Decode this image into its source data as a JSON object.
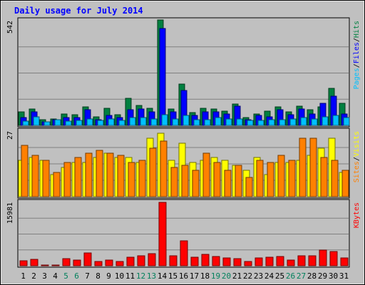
{
  "chart_data": {
    "type": "bar",
    "title": "Daily usage for July 2014",
    "days": [
      "1",
      "2",
      "3",
      "4",
      "5",
      "6",
      "7",
      "8",
      "9",
      "10",
      "11",
      "12",
      "13",
      "14",
      "15",
      "16",
      "17",
      "18",
      "19",
      "20",
      "21",
      "22",
      "23",
      "24",
      "25",
      "26",
      "27",
      "28",
      "29",
      "30",
      "31"
    ],
    "weekend_days": [
      5,
      6,
      12,
      13,
      19,
      20,
      26,
      27
    ],
    "panels": [
      {
        "id": "hits",
        "max_label": "542",
        "ymax": 542,
        "grid": true,
        "legend": [
          {
            "name": "Pages",
            "color": "#00C0FF"
          },
          {
            "name": "/",
            "color": "#000000"
          },
          {
            "name": "Files",
            "color": "#0000FF"
          },
          {
            "name": "/",
            "color": "#000000"
          },
          {
            "name": "Hits",
            "color": "#008040"
          }
        ],
        "series": [
          {
            "name": "Hits",
            "color": "#008040",
            "values": [
              70,
              85,
              30,
              35,
              60,
              55,
              95,
              45,
              90,
              55,
              140,
              105,
              90,
              545,
              85,
              215,
              65,
              90,
              85,
              75,
              110,
              40,
              60,
              75,
              95,
              70,
              100,
              80,
              95,
              190,
              115
            ]
          },
          {
            "name": "Files",
            "color": "#0000FF",
            "values": [
              40,
              70,
              20,
              30,
              40,
              40,
              80,
              30,
              50,
              40,
              80,
              85,
              70,
              500,
              70,
              180,
              50,
              70,
              70,
              60,
              100,
              30,
              50,
              45,
              80,
              55,
              85,
              60,
              115,
              150,
              60
            ]
          },
          {
            "name": "Pages",
            "color": "#00C0FF",
            "values": [
              22,
              45,
              18,
              30,
              22,
              25,
              35,
              25,
              35,
              25,
              40,
              40,
              35,
              55,
              35,
              50,
              28,
              30,
              40,
              35,
              35,
              25,
              25,
              28,
              30,
              35,
              40,
              35,
              45,
              50,
              40
            ]
          }
        ]
      },
      {
        "id": "visits",
        "max_label": "27",
        "ymax": 27,
        "grid": true,
        "legend": [
          {
            "name": "Sites",
            "color": "#FF8000"
          },
          {
            "name": "/",
            "color": "#000000"
          },
          {
            "name": "Visits",
            "color": "#FFFF00"
          }
        ],
        "series": [
          {
            "name": "Visits",
            "color": "#FFFF00",
            "values": [
              15,
              16,
              15,
              9,
              12,
              14,
              14,
              16,
              18,
              16,
              16,
              14,
              24,
              26,
              15,
              22,
              14,
              15,
              16,
              15,
              13,
              11,
              16,
              9,
              14,
              14,
              15,
              17,
              20,
              24,
              10
            ]
          },
          {
            "name": "Sites",
            "color": "#FF8000",
            "values": [
              21,
              17,
              15,
              10,
              14,
              16,
              18,
              19,
              18,
              17,
              14,
              15,
              20,
              23,
              12,
              13,
              11,
              18,
              14,
              11,
              13,
              8,
              15,
              14,
              17,
              15,
              24,
              24,
              16,
              15,
              11
            ]
          }
        ]
      },
      {
        "id": "kbytes",
        "max_label": "15981",
        "ymax": 15981,
        "grid": true,
        "legend": [
          {
            "name": "KBytes",
            "color": "#FF0000"
          }
        ],
        "series": [
          {
            "name": "KBytes",
            "color": "#FF0000",
            "values": [
              1200,
              1600,
              150,
              150,
              1800,
              1500,
              3300,
              1000,
              1400,
              1000,
              2100,
              2500,
              3100,
              15981,
              2600,
              6300,
              2100,
              2900,
              2300,
              1900,
              1800,
              1000,
              1900,
              2100,
              2300,
              1500,
              2600,
              2600,
              4000,
              3600,
              1900
            ]
          }
        ]
      }
    ],
    "colors": {
      "background": "#C0C0C0",
      "frame": "#000000",
      "grid": "#808080",
      "title": "#0000FF",
      "weekend_label": "#00805C",
      "weekday_label": "#000000"
    }
  }
}
